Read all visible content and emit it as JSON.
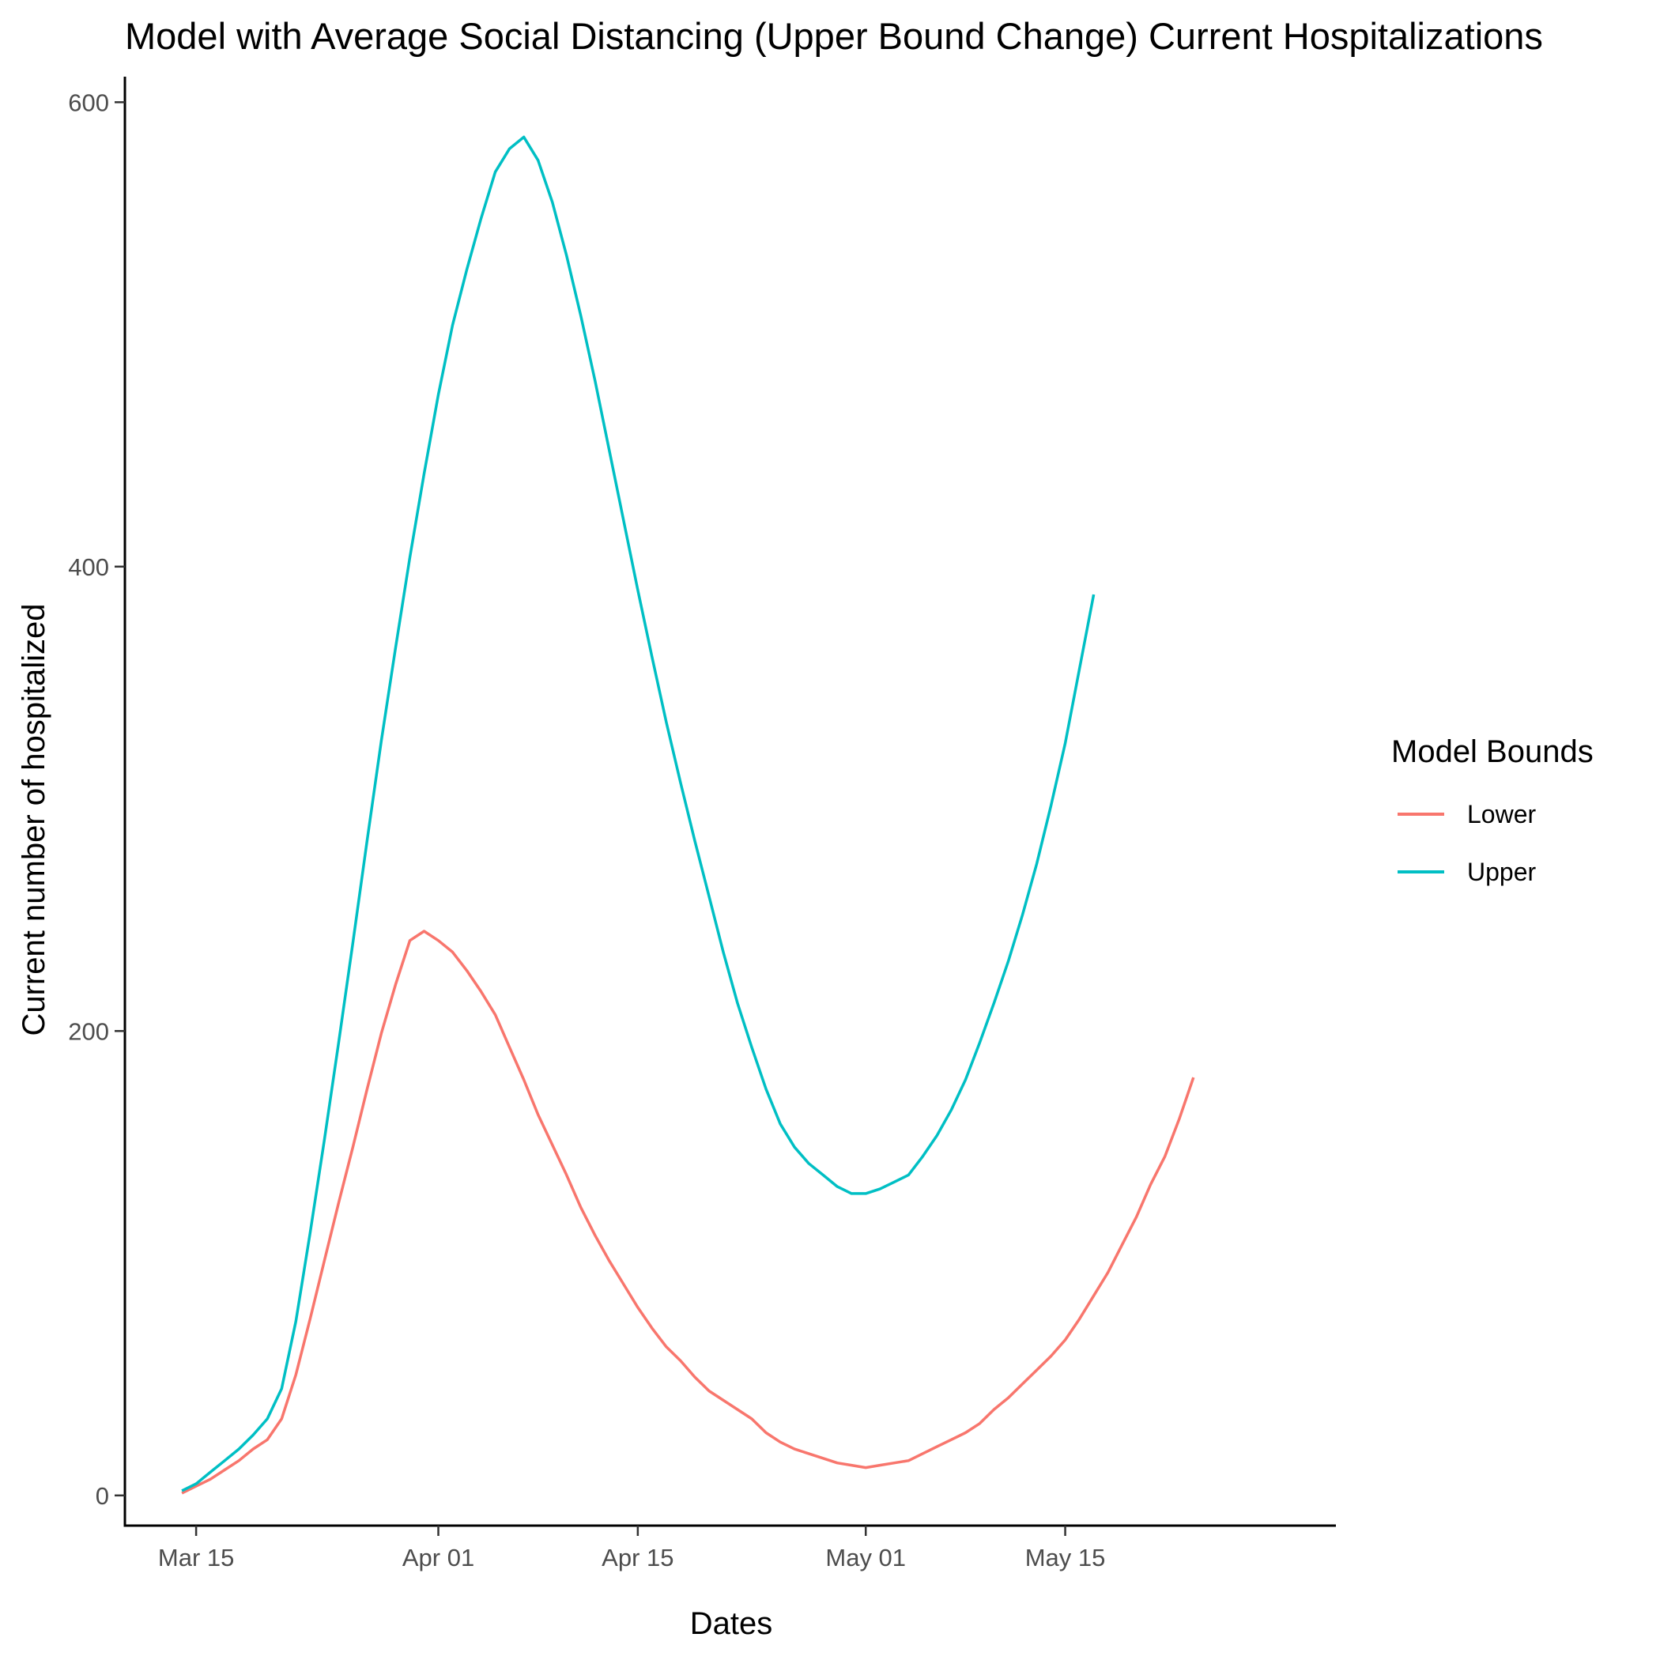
{
  "chart_data": {
    "type": "line",
    "title": "Model with Average Social Distancing (Upper Bound Change) Current Hospitalizations",
    "xlabel": "Dates",
    "ylabel": "Current number of hospitalized",
    "x_start_date": "2020-03-14",
    "x_ticks": [
      {
        "date": "2020-03-15",
        "label": "Mar 15"
      },
      {
        "date": "2020-04-01",
        "label": "Apr 01"
      },
      {
        "date": "2020-04-15",
        "label": "Apr 15"
      },
      {
        "date": "2020-05-01",
        "label": "May 01"
      },
      {
        "date": "2020-05-15",
        "label": "May 15"
      }
    ],
    "y_ticks": [
      0,
      200,
      400,
      600
    ],
    "ylim": [
      -13,
      611
    ],
    "xlim": [
      "2020-03-10",
      "2020-06-03"
    ],
    "grid": false,
    "legend": {
      "title": "Model Bounds",
      "position": "right"
    },
    "series": [
      {
        "name": "Lower",
        "color": "#F8766D",
        "values": [
          1,
          4,
          7,
          11,
          15,
          20,
          24,
          33,
          52,
          76,
          101,
          126,
          150,
          175,
          199,
          220,
          239,
          243,
          239,
          234,
          226,
          217,
          207,
          193,
          179,
          164,
          151,
          138,
          124,
          112,
          101,
          91,
          81,
          72,
          64,
          58,
          51,
          45,
          41,
          37,
          33,
          27,
          23,
          20,
          18,
          16,
          14,
          13,
          12,
          13,
          14,
          15,
          18,
          21,
          24,
          27,
          31,
          37,
          42,
          48,
          54,
          60,
          67,
          76,
          86,
          96,
          108,
          120,
          134,
          146,
          162,
          180
        ]
      },
      {
        "name": "Upper",
        "color": "#00BFC4",
        "values": [
          2,
          5,
          10,
          15,
          20,
          26,
          33,
          46,
          75,
          113,
          153,
          195,
          238,
          282,
          325,
          365,
          404,
          440,
          474,
          504,
          528,
          550,
          570,
          580,
          585,
          575,
          557,
          534,
          508,
          480,
          450,
          420,
          390,
          361,
          333,
          307,
          282,
          258,
          234,
          212,
          193,
          175,
          160,
          150,
          143,
          138,
          133,
          130,
          130,
          132,
          135,
          138,
          146,
          155,
          166,
          179,
          195,
          212,
          230,
          250,
          272,
          297,
          324,
          356,
          388
        ]
      }
    ]
  }
}
